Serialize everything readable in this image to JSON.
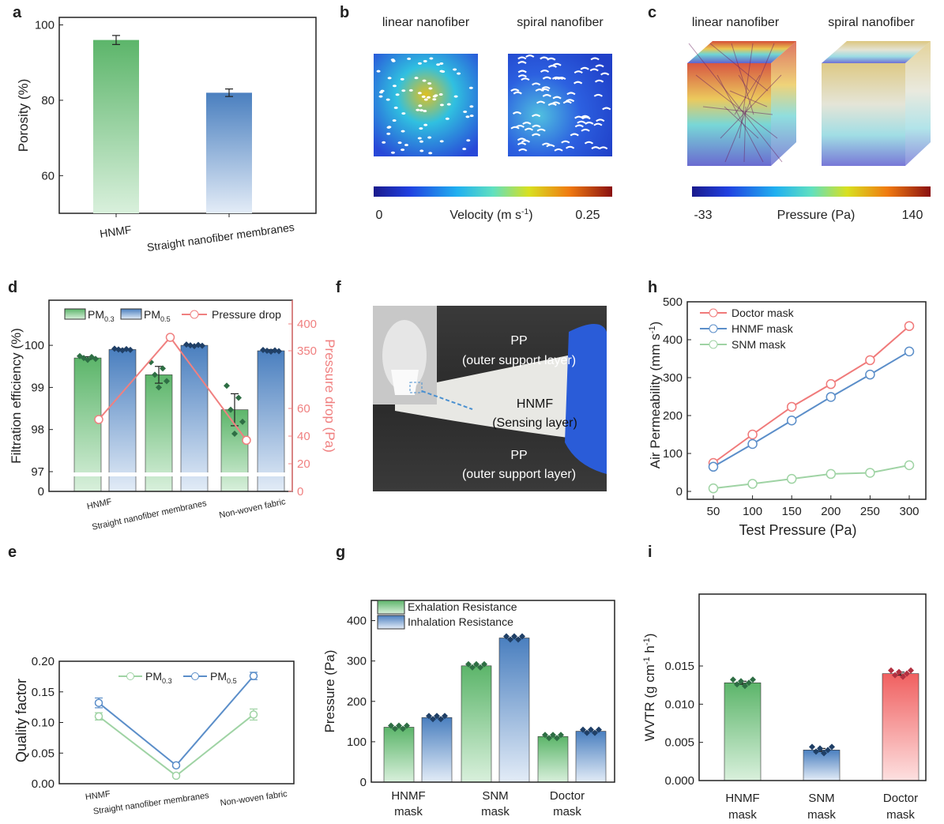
{
  "panel_labels": {
    "a": "a",
    "b": "b",
    "c": "c",
    "d": "d",
    "e": "e",
    "f": "f",
    "g": "g",
    "h": "h",
    "i": "i"
  },
  "colors": {
    "green": "#5cb56a",
    "blue": "#4a7fbf",
    "red": "#f07070",
    "pressure_line": "#f08080",
    "marker_green": "#2e6e44",
    "marker_blue": "#1f3f66",
    "marker_red": "#b23040"
  },
  "panel_b": {
    "titles": [
      "linear nanofiber",
      "spiral nanofiber"
    ],
    "colorbar_label": "Velocity (m s",
    "colorbar_unit_sup": "-1",
    "colorbar_unit_close": ")",
    "colorbar_min": "0",
    "colorbar_max": "0.25",
    "colormap": "jet"
  },
  "panel_c": {
    "titles": [
      "linear nanofiber",
      "spiral nanofiber"
    ],
    "colorbar_label": "Pressure (Pa)",
    "colorbar_min": "-33",
    "colorbar_max": "140",
    "colormap": "jet"
  },
  "panel_f": {
    "labels": [
      {
        "name": "PP",
        "sub": "(outer support layer)"
      },
      {
        "name": "HNMF",
        "sub": "(Sensing layer)"
      },
      {
        "name": "PP",
        "sub": "(outer support layer)"
      }
    ]
  },
  "chart_data": [
    {
      "id": "a",
      "type": "bar",
      "categories": [
        "HNMF",
        "Straight nanofiber membranes"
      ],
      "values": [
        96,
        82
      ],
      "errors": [
        1.2,
        1.0
      ],
      "ylabel": "Porosity (%)",
      "yticks": [
        60,
        80,
        100
      ],
      "ylim": [
        50,
        102
      ]
    },
    {
      "id": "d",
      "type": "bar",
      "categories": [
        "HNMF",
        "Straight nanofiber membranes",
        "Non-woven fabric"
      ],
      "series": [
        {
          "name": "PM",
          "sub": "0.3",
          "values": [
            99.7,
            99.3,
            98.47
          ],
          "errors": [
            0.03,
            0.2,
            0.38
          ]
        },
        {
          "name": "PM",
          "sub": "0.5",
          "values": [
            99.9,
            100.0,
            99.87
          ],
          "errors": [
            0.02,
            0.01,
            0.03
          ]
        }
      ],
      "line_series": {
        "name": "Pressure drop",
        "values": [
          52,
          375,
          37
        ],
        "errors": [
          1,
          8,
          1
        ]
      },
      "ylabel": "Filtration efficiency (%)",
      "yticks": [
        "0",
        "97",
        "98",
        "99",
        "100"
      ],
      "y2label": "Pressure drop (Pa)",
      "y2ticks": [
        "0",
        "20",
        "40",
        "60",
        "350",
        "400"
      ],
      "y_axis_break": true
    },
    {
      "id": "e",
      "type": "line",
      "categories": [
        "HNMF",
        "Straight nanofiber membranes",
        "Non-woven fabric"
      ],
      "series": [
        {
          "name": "PM",
          "sub": "0.3",
          "values": [
            0.11,
            0.013,
            0.113
          ],
          "errors": [
            0.006,
            0.002,
            0.009
          ]
        },
        {
          "name": "PM",
          "sub": "0.5",
          "values": [
            0.132,
            0.03,
            0.176
          ],
          "errors": [
            0.008,
            0.002,
            0.006
          ]
        }
      ],
      "ylabel": "Quality factor",
      "yticks": [
        "0.00",
        "0.05",
        "0.10",
        "0.15",
        "0.20"
      ],
      "ylim": [
        0,
        0.2
      ]
    },
    {
      "id": "g",
      "type": "bar",
      "categories": [
        [
          "HNMF",
          "mask"
        ],
        [
          "SNM",
          "mask"
        ],
        [
          "Doctor",
          "mask"
        ]
      ],
      "series": [
        {
          "name": "Exhalation Resistance",
          "values": [
            136,
            288,
            113
          ]
        },
        {
          "name": "Inhalation Resistance",
          "values": [
            160,
            357,
            126
          ]
        }
      ],
      "ylabel": "Pressure (Pa)",
      "yticks": [
        "0",
        "100",
        "200",
        "300",
        "400"
      ],
      "ylim": [
        0,
        450
      ]
    },
    {
      "id": "h",
      "type": "line",
      "x": [
        50,
        100,
        150,
        200,
        250,
        300
      ],
      "series": [
        {
          "name": "Doctor mask",
          "values": [
            75,
            150,
            223,
            283,
            346,
            436
          ]
        },
        {
          "name": "HNMF mask",
          "values": [
            65,
            125,
            187,
            249,
            308,
            369
          ]
        },
        {
          "name": "SNM mask",
          "values": [
            8,
            20,
            33,
            46,
            49,
            69
          ]
        }
      ],
      "xlabel": "Test Pressure (Pa)",
      "ylabel": "Air Permeability (mm s",
      "ylabel_sup": "-1",
      "ylabel_close": ")",
      "xticks": [
        "50",
        "100",
        "150",
        "200",
        "250",
        "300"
      ],
      "yticks": [
        "0",
        "100",
        "200",
        "300",
        "400",
        "500"
      ],
      "ylim": [
        0,
        500
      ]
    },
    {
      "id": "i",
      "type": "bar",
      "categories": [
        [
          "HNMF",
          "mask"
        ],
        [
          "SNM",
          "mask"
        ],
        [
          "Doctor",
          "mask"
        ]
      ],
      "values": [
        0.0128,
        0.004,
        0.014
      ],
      "errors": [
        0.0002,
        0.0002,
        0.0002
      ],
      "ylabel": "WVTR (g cm",
      "ylabel_sup": "-1",
      "ylabel_mid": " h",
      "ylabel_sup2": "-1",
      "ylabel_close": ")",
      "yticks": [
        "0.000",
        "0.005",
        "0.010",
        "0.015"
      ],
      "ylim": [
        0,
        0.0175
      ]
    }
  ]
}
